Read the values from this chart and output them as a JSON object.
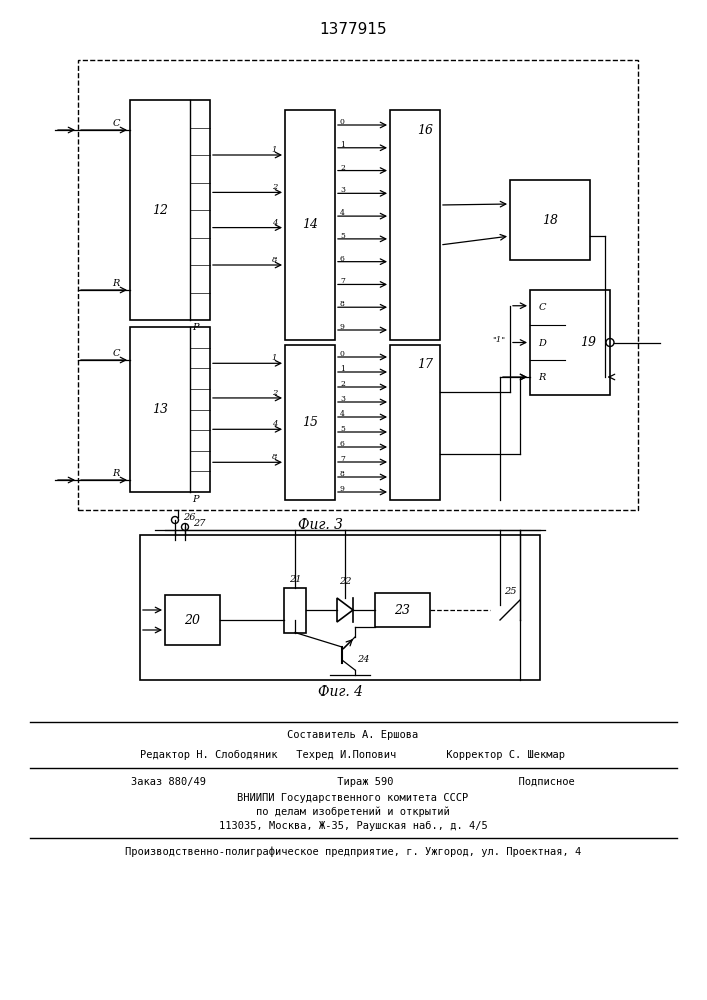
{
  "title": "1377915",
  "fig3_caption": "Фиг. 3",
  "fig4_caption": "Фиг. 4",
  "footer_line1": "Составитель А. Ершова",
  "footer_line2": "Редактор Н. Слободяник   Техред И.Попович        Корректор С. Шекмар",
  "footer_line3": "Заказ 880/49                     Тираж 590                    Подписное",
  "footer_line4": "ВНИИПИ Государственного комитета СССР",
  "footer_line5": "по делам изобретений и открытий",
  "footer_line6": "113035, Москва, Ж-35, Раушская наб., д. 4/5",
  "footer_line7": "Производственно-полиграфическое предприятие, г. Ужгород, ул. Проектная, 4",
  "bg_color": "#ffffff",
  "line_color": "#000000"
}
